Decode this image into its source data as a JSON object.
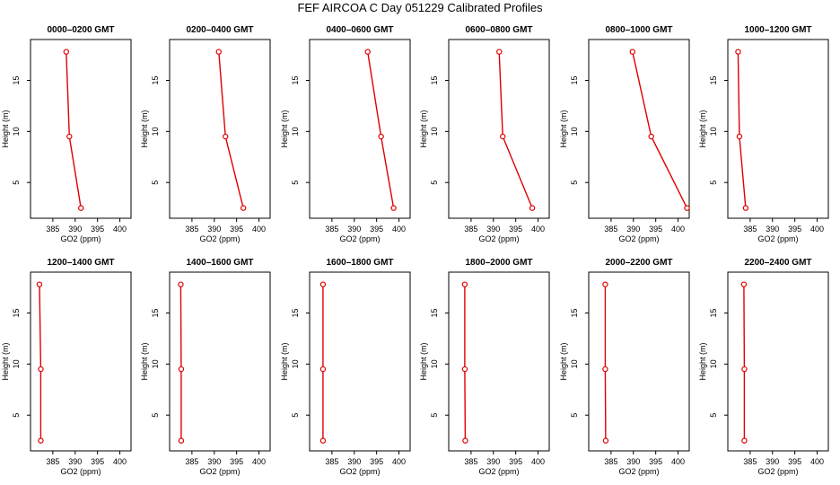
{
  "title": "FEF AIRCOA C  Day 051229  Calibrated Profiles",
  "colors": {
    "line": "#e00000",
    "axis": "#000000"
  },
  "chart_data": [
    {
      "type": "line",
      "title": "0000–0200 GMT",
      "xlabel": "GO2 (ppm)",
      "ylabel": "Height (m)",
      "xlim": [
        380,
        402.5
      ],
      "ylim": [
        1.5,
        19
      ],
      "xticks": [
        385,
        390,
        395,
        400
      ],
      "yticks": [
        5,
        10,
        15
      ],
      "heights": [
        2.5,
        9.5,
        17.8
      ],
      "values": [
        391.3,
        388.7,
        388.0
      ]
    },
    {
      "type": "line",
      "title": "0200–0400 GMT",
      "xlabel": "GO2 (ppm)",
      "ylabel": "Height (m)",
      "xlim": [
        380,
        402.5
      ],
      "ylim": [
        1.5,
        19
      ],
      "xticks": [
        385,
        390,
        395,
        400
      ],
      "yticks": [
        5,
        10,
        15
      ],
      "heights": [
        2.5,
        9.5,
        17.8
      ],
      "values": [
        396.5,
        392.5,
        391.0
      ]
    },
    {
      "type": "line",
      "title": "0400–0600 GMT",
      "xlabel": "GO2 (ppm)",
      "ylabel": "Height (m)",
      "xlim": [
        380,
        402.5
      ],
      "ylim": [
        1.5,
        19
      ],
      "xticks": [
        385,
        390,
        395,
        400
      ],
      "yticks": [
        5,
        10,
        15
      ],
      "heights": [
        2.5,
        9.5,
        17.8
      ],
      "values": [
        398.8,
        396.0,
        393.0
      ]
    },
    {
      "type": "line",
      "title": "0600–0800 GMT",
      "xlabel": "GO2 (ppm)",
      "ylabel": "Height (m)",
      "xlim": [
        380,
        402.5
      ],
      "ylim": [
        1.5,
        19
      ],
      "xticks": [
        385,
        390,
        395,
        400
      ],
      "yticks": [
        5,
        10,
        15
      ],
      "heights": [
        2.5,
        9.5,
        17.8
      ],
      "values": [
        398.7,
        392.1,
        391.3
      ]
    },
    {
      "type": "line",
      "title": "0800–1000 GMT",
      "xlabel": "GO2 (ppm)",
      "ylabel": "Height (m)",
      "xlim": [
        380,
        402.5
      ],
      "ylim": [
        1.5,
        19
      ],
      "xticks": [
        385,
        390,
        395,
        400
      ],
      "yticks": [
        5,
        10,
        15
      ],
      "heights": [
        2.5,
        9.5,
        17.8
      ],
      "values": [
        402.0,
        394.0,
        389.8
      ]
    },
    {
      "type": "line",
      "title": "1000–1200 GMT",
      "xlabel": "GO2 (ppm)",
      "ylabel": "Height (m)",
      "xlim": [
        380,
        402.5
      ],
      "ylim": [
        1.5,
        19
      ],
      "xticks": [
        385,
        390,
        395,
        400
      ],
      "yticks": [
        5,
        10,
        15
      ],
      "heights": [
        2.5,
        9.5,
        17.8
      ],
      "values": [
        384.0,
        382.6,
        382.3
      ]
    },
    {
      "type": "line",
      "title": "1200–1400 GMT",
      "xlabel": "GO2 (ppm)",
      "ylabel": "Height (m)",
      "xlim": [
        380,
        402.5
      ],
      "ylim": [
        1.5,
        19
      ],
      "xticks": [
        385,
        390,
        395,
        400
      ],
      "yticks": [
        5,
        10,
        15
      ],
      "heights": [
        2.5,
        9.5,
        17.8
      ],
      "values": [
        382.3,
        382.3,
        382.0
      ]
    },
    {
      "type": "line",
      "title": "1400–1600 GMT",
      "xlabel": "GO2 (ppm)",
      "ylabel": "Height (m)",
      "xlim": [
        380,
        402.5
      ],
      "ylim": [
        1.5,
        19
      ],
      "xticks": [
        385,
        390,
        395,
        400
      ],
      "yticks": [
        5,
        10,
        15
      ],
      "heights": [
        2.5,
        9.5,
        17.8
      ],
      "values": [
        382.6,
        382.6,
        382.5
      ]
    },
    {
      "type": "line",
      "title": "1600–1800 GMT",
      "xlabel": "GO2 (ppm)",
      "ylabel": "Height (m)",
      "xlim": [
        380,
        402.5
      ],
      "ylim": [
        1.5,
        19
      ],
      "xticks": [
        385,
        390,
        395,
        400
      ],
      "yticks": [
        5,
        10,
        15
      ],
      "heights": [
        2.5,
        9.5,
        17.8
      ],
      "values": [
        383.0,
        383.0,
        383.0
      ]
    },
    {
      "type": "line",
      "title": "1800–2000 GMT",
      "xlabel": "GO2 (ppm)",
      "ylabel": "Height (m)",
      "xlim": [
        380,
        402.5
      ],
      "ylim": [
        1.5,
        19
      ],
      "xticks": [
        385,
        390,
        395,
        400
      ],
      "yticks": [
        5,
        10,
        15
      ],
      "heights": [
        2.5,
        9.5,
        17.8
      ],
      "values": [
        383.7,
        383.6,
        383.6
      ]
    },
    {
      "type": "line",
      "title": "2000–2200 GMT",
      "xlabel": "GO2 (ppm)",
      "ylabel": "Height (m)",
      "xlim": [
        380,
        402.5
      ],
      "ylim": [
        1.5,
        19
      ],
      "xticks": [
        385,
        390,
        395,
        400
      ],
      "yticks": [
        5,
        10,
        15
      ],
      "heights": [
        2.5,
        9.5,
        17.8
      ],
      "values": [
        383.8,
        383.7,
        383.7
      ]
    },
    {
      "type": "line",
      "title": "2200–2400 GMT",
      "xlabel": "GO2 (ppm)",
      "ylabel": "Height (m)",
      "xlim": [
        380,
        402.5
      ],
      "ylim": [
        1.5,
        19
      ],
      "xticks": [
        385,
        390,
        395,
        400
      ],
      "yticks": [
        5,
        10,
        15
      ],
      "heights": [
        2.5,
        9.5,
        17.8
      ],
      "values": [
        383.7,
        383.7,
        383.6
      ]
    }
  ]
}
